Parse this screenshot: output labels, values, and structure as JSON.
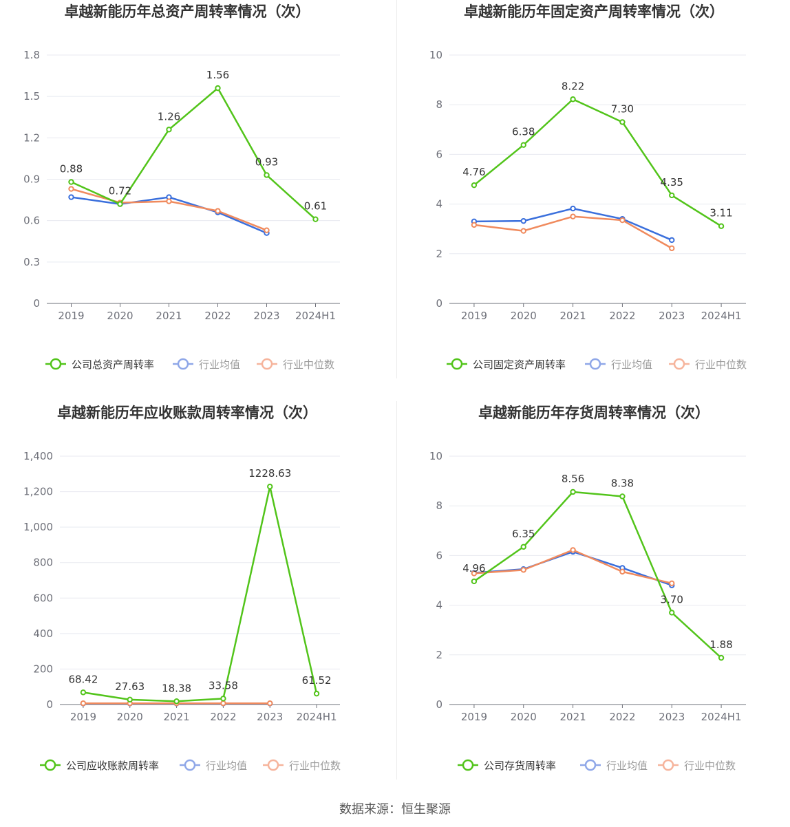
{
  "footer": "数据来源：恒生聚源",
  "colors": {
    "company": "#52c41a",
    "industry_avg": "#3a6fdc",
    "industry_median": "#f08a5d",
    "legend_avg": "#8fa7e8",
    "legend_median": "#f6b49c",
    "grid": "#e8eaf0",
    "axis": "#6e7079"
  },
  "chart_data": [
    {
      "type": "line",
      "title": "卓越新能历年总资产周转率情况（次）",
      "categories": [
        "2019",
        "2020",
        "2021",
        "2022",
        "2023",
        "2024H1"
      ],
      "ylim": [
        0,
        1.8
      ],
      "yticks": [
        "0",
        "0.3",
        "0.6",
        "0.9",
        "1.2",
        "1.5",
        "1.8"
      ],
      "series": [
        {
          "name": "公司总资产周转率",
          "values": [
            0.88,
            0.72,
            1.26,
            1.56,
            0.93,
            0.61
          ],
          "labels": [
            "0.88",
            "0.72",
            "1.26",
            "1.56",
            "0.93",
            "0.61"
          ]
        },
        {
          "name": "行业均值",
          "values": [
            0.77,
            0.72,
            0.77,
            0.66,
            0.51,
            null
          ]
        },
        {
          "name": "行业中位数",
          "values": [
            0.83,
            0.73,
            0.74,
            0.67,
            0.53,
            null
          ]
        }
      ]
    },
    {
      "type": "line",
      "title": "卓越新能历年固定资产周转率情况（次）",
      "categories": [
        "2019",
        "2020",
        "2021",
        "2022",
        "2023",
        "2024H1"
      ],
      "ylim": [
        0,
        10
      ],
      "yticks": [
        "0",
        "2",
        "4",
        "6",
        "8",
        "10"
      ],
      "series": [
        {
          "name": "公司固定资产周转率",
          "values": [
            4.76,
            6.38,
            8.22,
            7.3,
            4.35,
            3.11
          ],
          "labels": [
            "4.76",
            "6.38",
            "8.22",
            "7.30",
            "4.35",
            "3.11"
          ]
        },
        {
          "name": "行业均值",
          "values": [
            3.3,
            3.32,
            3.82,
            3.4,
            2.55,
            null
          ]
        },
        {
          "name": "行业中位数",
          "values": [
            3.16,
            2.92,
            3.5,
            3.35,
            2.22,
            null
          ]
        }
      ]
    },
    {
      "type": "line",
      "title": "卓越新能历年应收账款周转率情况（次）",
      "categories": [
        "2019",
        "2020",
        "2021",
        "2022",
        "2023",
        "2024H1"
      ],
      "ylim": [
        0,
        1400
      ],
      "yticks": [
        "0",
        "200",
        "400",
        "600",
        "800",
        "1,000",
        "1,200",
        "1,400"
      ],
      "series": [
        {
          "name": "公司应收账款周转率",
          "values": [
            68.42,
            27.63,
            18.38,
            33.58,
            1228.63,
            61.52
          ],
          "labels": [
            "68.42",
            "27.63",
            "18.38",
            "33.58",
            "1228.63",
            "61.52"
          ]
        },
        {
          "name": "行业均值",
          "values": [
            6,
            6,
            6,
            6,
            6,
            null
          ]
        },
        {
          "name": "行业中位数",
          "values": [
            7,
            7,
            7,
            7,
            7,
            null
          ]
        }
      ]
    },
    {
      "type": "line",
      "title": "卓越新能历年存货周转率情况（次）",
      "categories": [
        "2019",
        "2020",
        "2021",
        "2022",
        "2023",
        "2024H1"
      ],
      "ylim": [
        0,
        10
      ],
      "yticks": [
        "0",
        "2",
        "4",
        "6",
        "8",
        "10"
      ],
      "series": [
        {
          "name": "公司存货周转率",
          "values": [
            4.96,
            6.35,
            8.56,
            8.38,
            3.7,
            1.88
          ],
          "labels": [
            "4.96",
            "6.35",
            "8.56",
            "8.38",
            "3.70",
            "1.88"
          ]
        },
        {
          "name": "行业均值",
          "values": [
            5.3,
            5.45,
            6.15,
            5.5,
            4.8,
            null
          ]
        },
        {
          "name": "行业中位数",
          "values": [
            5.28,
            5.42,
            6.22,
            5.35,
            4.88,
            null
          ]
        }
      ]
    }
  ]
}
